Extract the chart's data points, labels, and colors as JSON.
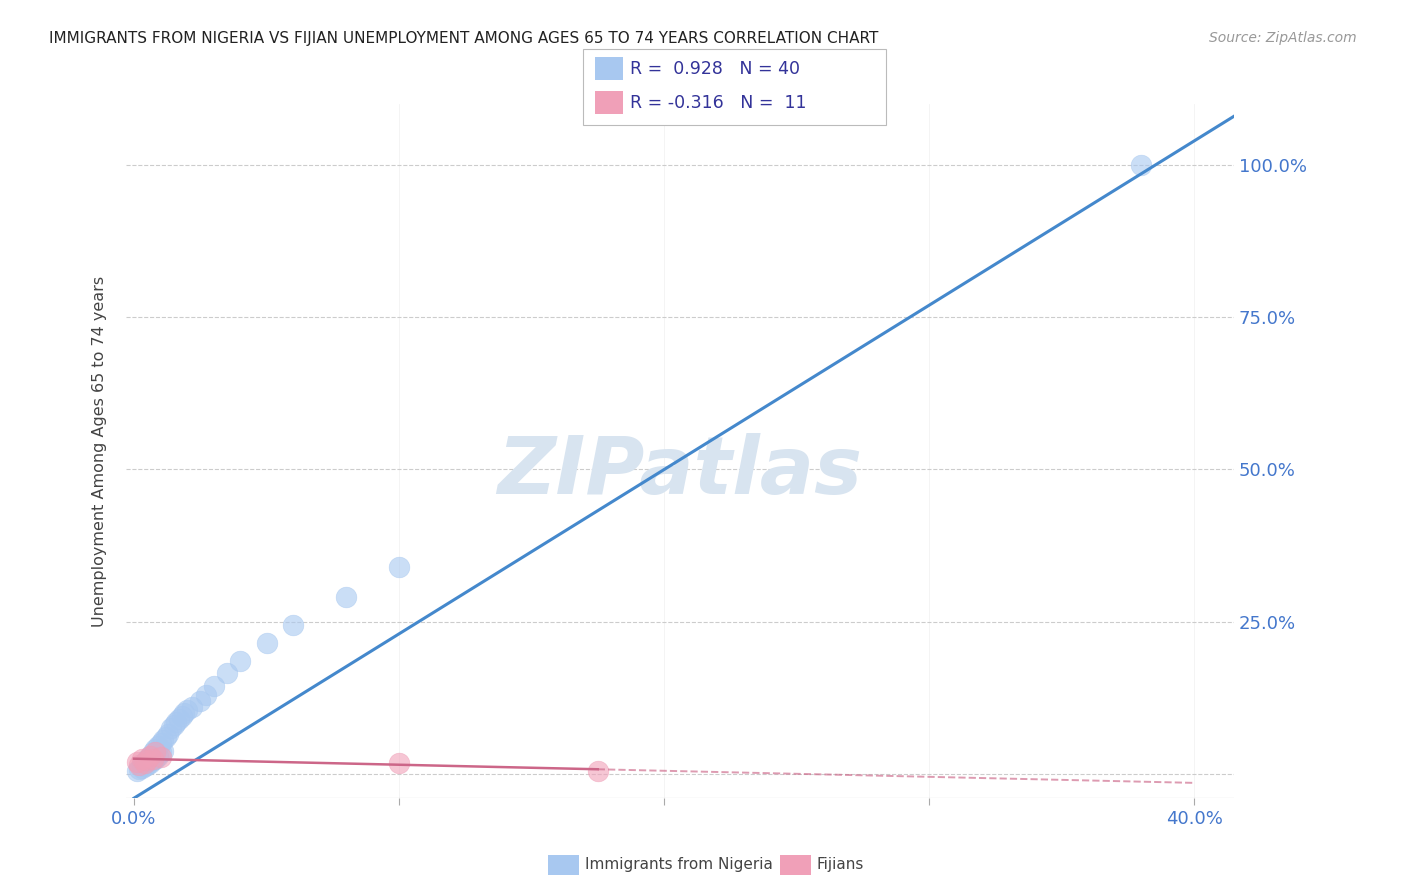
{
  "title": "IMMIGRANTS FROM NIGERIA VS FIJIAN UNEMPLOYMENT AMONG AGES 65 TO 74 YEARS CORRELATION CHART",
  "source": "Source: ZipAtlas.com",
  "ylabel": "Unemployment Among Ages 65 to 74 years",
  "xlim": [
    -0.003,
    0.415
  ],
  "ylim": [
    -0.04,
    1.1
  ],
  "xticks": [
    0.0,
    0.1,
    0.2,
    0.3,
    0.4
  ],
  "xtick_labels": [
    "0.0%",
    "",
    "",
    "",
    "40.0%"
  ],
  "ytick_labels": [
    "",
    "25.0%",
    "50.0%",
    "75.0%",
    "100.0%"
  ],
  "yticks": [
    0.0,
    0.25,
    0.5,
    0.75,
    1.0
  ],
  "blue_color": "#A8C8F0",
  "pink_color": "#F0A0B8",
  "blue_line_color": "#4488CC",
  "pink_line_color": "#CC6688",
  "grid_color": "#CCCCCC",
  "background_color": "#FFFFFF",
  "watermark_color": "#D8E4F0",
  "nigeria_x": [
    0.001,
    0.002,
    0.003,
    0.003,
    0.004,
    0.004,
    0.005,
    0.005,
    0.006,
    0.006,
    0.007,
    0.007,
    0.008,
    0.008,
    0.009,
    0.009,
    0.01,
    0.01,
    0.011,
    0.011,
    0.012,
    0.013,
    0.014,
    0.015,
    0.016,
    0.017,
    0.018,
    0.019,
    0.02,
    0.022,
    0.025,
    0.027,
    0.03,
    0.035,
    0.04,
    0.05,
    0.06,
    0.08,
    0.1,
    0.38
  ],
  "nigeria_y": [
    0.005,
    0.008,
    0.01,
    0.015,
    0.012,
    0.02,
    0.015,
    0.025,
    0.018,
    0.03,
    0.022,
    0.035,
    0.025,
    0.04,
    0.03,
    0.045,
    0.035,
    0.05,
    0.038,
    0.055,
    0.06,
    0.065,
    0.075,
    0.08,
    0.085,
    0.09,
    0.095,
    0.1,
    0.105,
    0.11,
    0.12,
    0.13,
    0.145,
    0.165,
    0.185,
    0.215,
    0.245,
    0.29,
    0.34,
    1.0
  ],
  "fijian_x": [
    0.001,
    0.002,
    0.003,
    0.004,
    0.005,
    0.006,
    0.007,
    0.008,
    0.01,
    0.1,
    0.175
  ],
  "fijian_y": [
    0.02,
    0.015,
    0.025,
    0.018,
    0.022,
    0.03,
    0.025,
    0.035,
    0.028,
    0.018,
    0.005
  ],
  "blue_line_x0": 0.0,
  "blue_line_y0": -0.04,
  "blue_line_x1": 0.415,
  "blue_line_y1": 1.08,
  "pink_line_x0": 0.0,
  "pink_line_x1": 0.175,
  "pink_line_x2": 0.4,
  "legend_text1": "R =  0.928   N = 40",
  "legend_text2": "R = -0.316   N =  11"
}
